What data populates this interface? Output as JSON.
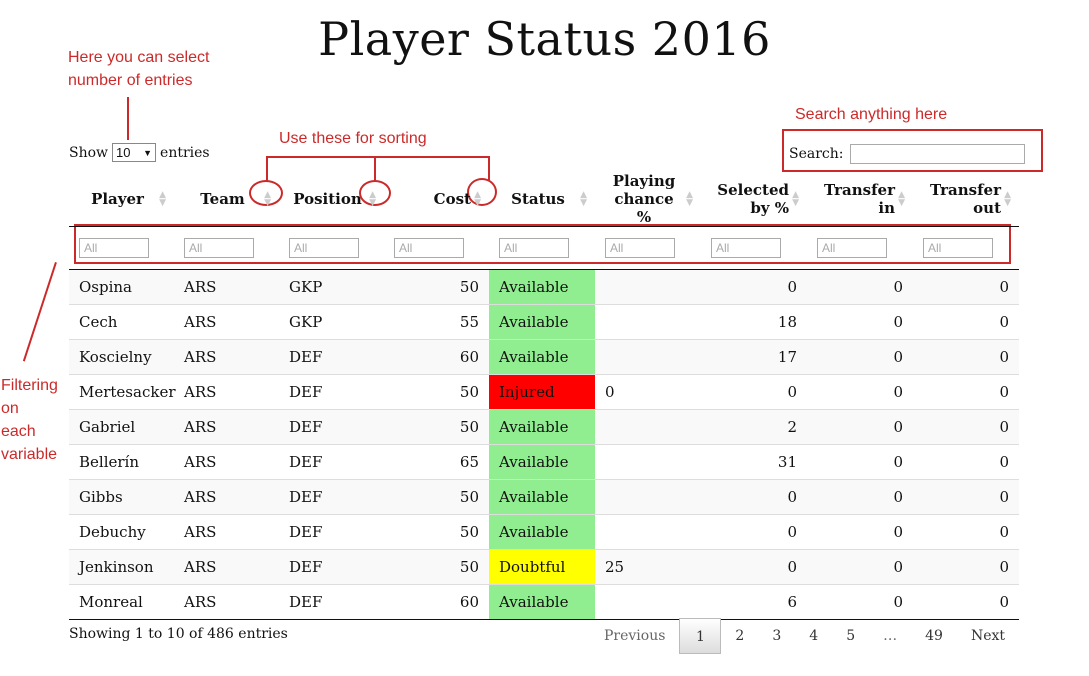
{
  "title": "Player Status 2016",
  "annotations": {
    "entries": "Here you can select\nnumber of entries",
    "sorting": "Use these for sorting",
    "search": "Search anything here",
    "filtering": "Filtering\non\neach\nvariable"
  },
  "length": {
    "show_label": "Show",
    "value": "10",
    "entries_label": "entries"
  },
  "search": {
    "label": "Search:",
    "value": ""
  },
  "columns": [
    {
      "label": "Player"
    },
    {
      "label": "Team"
    },
    {
      "label": "Position"
    },
    {
      "label": "Cost"
    },
    {
      "label": "Status"
    },
    {
      "label": "Playing chance %"
    },
    {
      "label": "Selected by %"
    },
    {
      "label": "Transfer in"
    },
    {
      "label": "Transfer out"
    }
  ],
  "filter_placeholder": "All",
  "rows": [
    [
      "Ospina",
      "ARS",
      "GKP",
      "50",
      "Available",
      "",
      "0",
      "0",
      "0"
    ],
    [
      "Cech",
      "ARS",
      "GKP",
      "55",
      "Available",
      "",
      "18",
      "0",
      "0"
    ],
    [
      "Koscielny",
      "ARS",
      "DEF",
      "60",
      "Available",
      "",
      "17",
      "0",
      "0"
    ],
    [
      "Mertesacker",
      "ARS",
      "DEF",
      "50",
      "Injured",
      "0",
      "0",
      "0",
      "0"
    ],
    [
      "Gabriel",
      "ARS",
      "DEF",
      "50",
      "Available",
      "",
      "2",
      "0",
      "0"
    ],
    [
      "Bellerín",
      "ARS",
      "DEF",
      "65",
      "Available",
      "",
      "31",
      "0",
      "0"
    ],
    [
      "Gibbs",
      "ARS",
      "DEF",
      "50",
      "Available",
      "",
      "0",
      "0",
      "0"
    ],
    [
      "Debuchy",
      "ARS",
      "DEF",
      "50",
      "Available",
      "",
      "0",
      "0",
      "0"
    ],
    [
      "Jenkinson",
      "ARS",
      "DEF",
      "50",
      "Doubtful",
      "25",
      "0",
      "0",
      "0"
    ],
    [
      "Monreal",
      "ARS",
      "DEF",
      "60",
      "Available",
      "",
      "6",
      "0",
      "0"
    ]
  ],
  "info": "Showing 1 to 10 of 486 entries",
  "pagination": [
    "Previous",
    "1",
    "2",
    "3",
    "4",
    "5",
    "…",
    "49",
    "Next"
  ],
  "colors": {
    "available": "#90ee90",
    "injured": "#ff0000",
    "doubtful": "#ffff00",
    "annotation": "#cc2a2a"
  }
}
